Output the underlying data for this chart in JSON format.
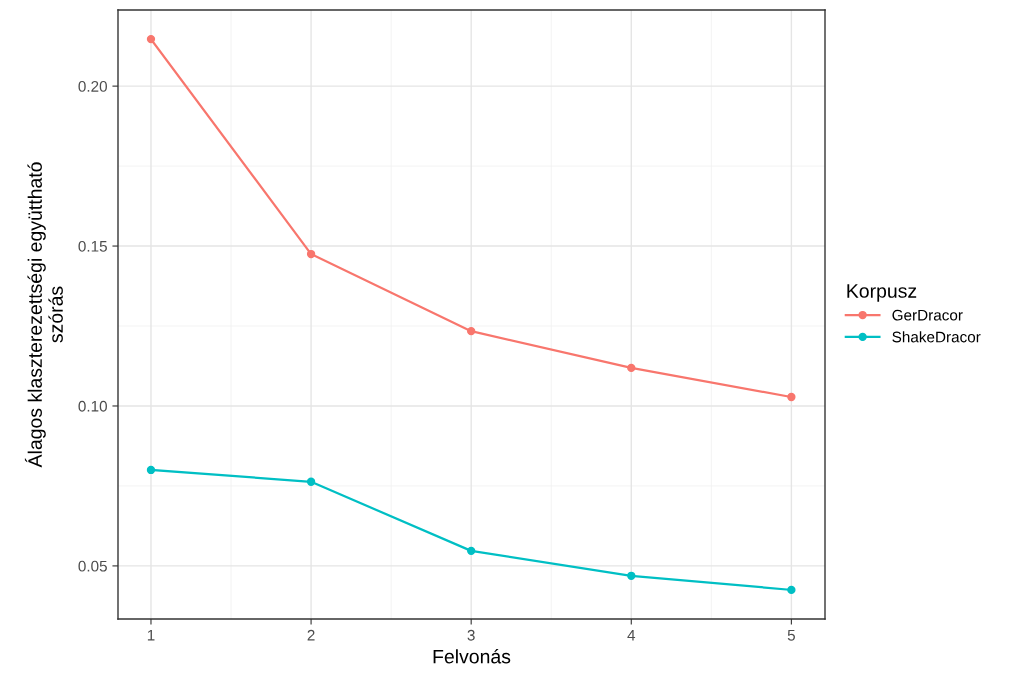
{
  "chart_data": {
    "type": "line",
    "xlabel": "Felvonás",
    "ylabel": "Álagos klaszterezettségi együttható\nszórás",
    "legend_title": "Korpusz",
    "x": [
      1,
      2,
      3,
      4,
      5
    ],
    "series": [
      {
        "name": "GerDracor",
        "color": "#f8766d",
        "values": [
          0.2147,
          0.1475,
          0.1234,
          0.1119,
          0.1028
        ]
      },
      {
        "name": "ShakeDracor",
        "color": "#00bfc4",
        "values": [
          0.08,
          0.0763,
          0.0547,
          0.0469,
          0.0425
        ]
      }
    ],
    "xlim": [
      0.794,
      5.21
    ],
    "xticks": [
      1,
      2,
      3,
      4,
      5
    ],
    "ylim": [
      0.0334,
      0.2238
    ],
    "yticks": [
      {
        "value": 0.05,
        "label": "0.05"
      },
      {
        "value": 0.1,
        "label": "0.10"
      },
      {
        "value": 0.15,
        "label": "0.15"
      },
      {
        "value": 0.2,
        "label": "0.20"
      }
    ],
    "grid": true,
    "legend": "right",
    "marker": "circle",
    "line_style": "solid"
  }
}
